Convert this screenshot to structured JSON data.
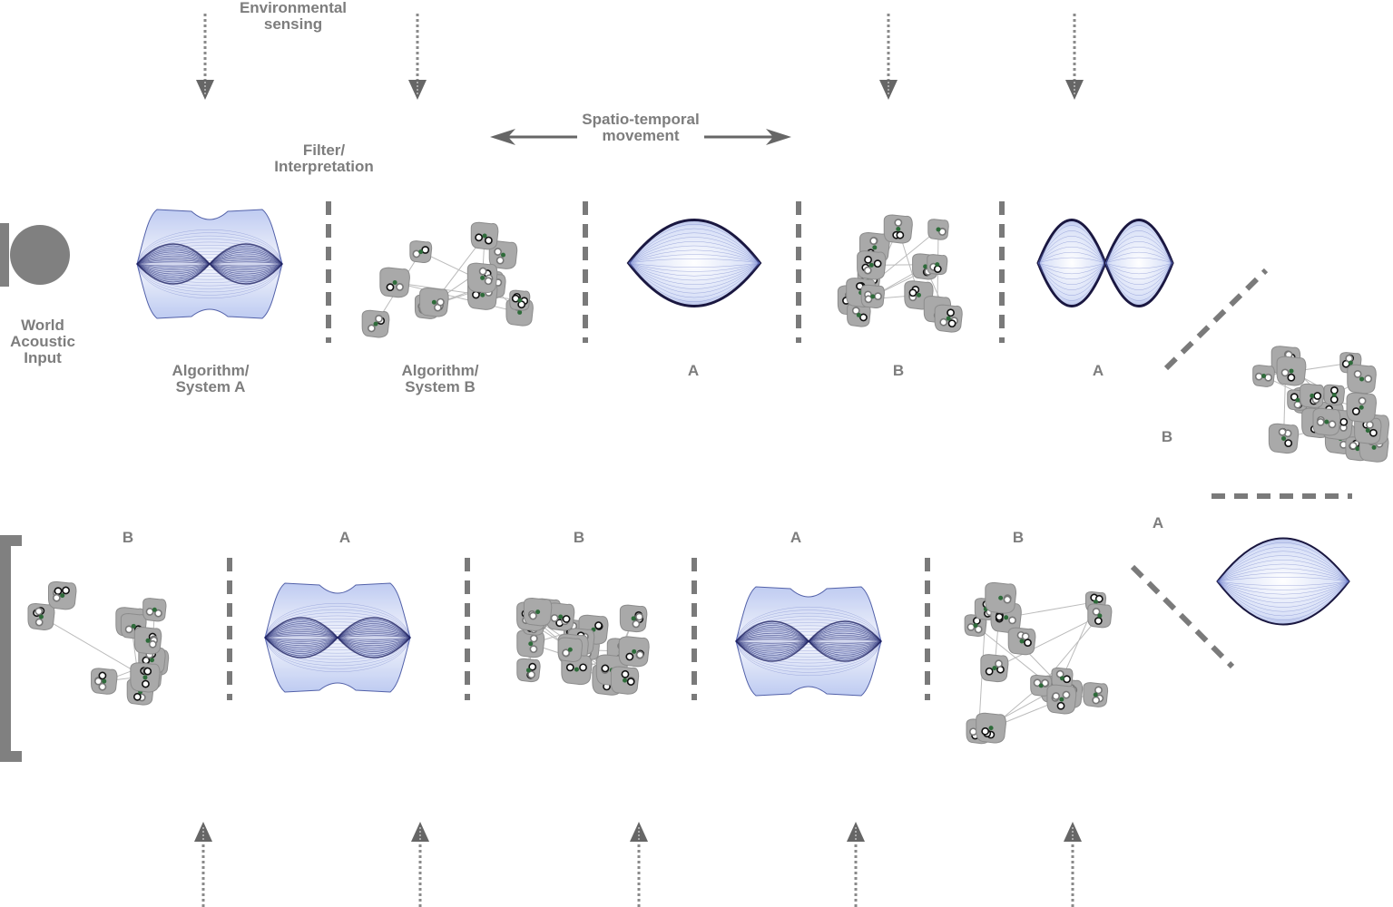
{
  "labels": {
    "env_sensing": [
      "Environmental",
      "sensing"
    ],
    "filter": [
      "Filter/",
      "Interpretation"
    ],
    "movement": [
      "Spatio-temporal",
      "movement"
    ],
    "world_input": [
      "World",
      "Acoustic",
      "Input"
    ],
    "system_a": [
      "Algorithm/",
      "System A"
    ],
    "system_b": [
      "Algorithm/",
      "System B"
    ]
  },
  "sequence_top": [
    {
      "type": "A-complex",
      "label": "Algorithm/ System A"
    },
    {
      "type": "B",
      "label": "Algorithm/ System B"
    },
    {
      "type": "A-lens",
      "label": "A"
    },
    {
      "type": "B",
      "label": "B"
    },
    {
      "type": "A-double",
      "label": "A"
    }
  ],
  "sequence_turn": [
    {
      "type": "B",
      "label": "B"
    },
    {
      "type": "A-lens",
      "label": "A"
    }
  ],
  "sequence_bottom": [
    {
      "type": "B",
      "label": "B"
    },
    {
      "type": "A-complex",
      "label": "A"
    },
    {
      "type": "B",
      "label": "B"
    },
    {
      "type": "A-complex",
      "label": "A"
    },
    {
      "type": "B",
      "label": "B"
    }
  ],
  "colors": {
    "text": "#7d7d7d",
    "divider": "#7a7a7a",
    "arrow": "#666666",
    "shape_a_edge": "#1a1740",
    "shape_a_fill": "#c9d3f2",
    "shape_b_fill": "#a9a9a9"
  }
}
